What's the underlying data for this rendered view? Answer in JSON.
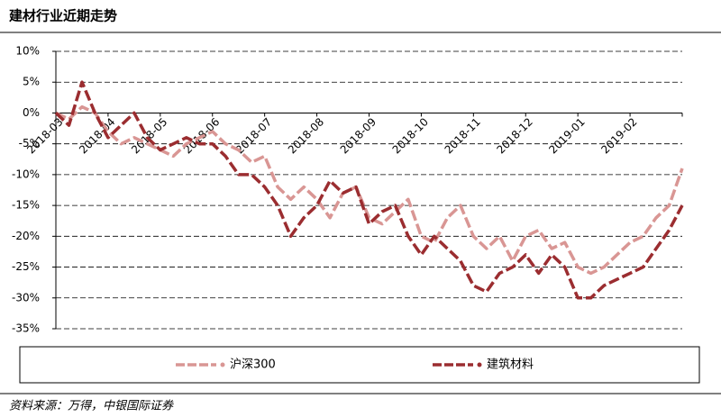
{
  "chart_data": {
    "type": "line",
    "title": "建材行业近期走势",
    "source": "资料来源：万得，中银国际证券",
    "categories": [
      "2018-03",
      null,
      null,
      null,
      "2018-04",
      null,
      null,
      null,
      "2018-05",
      null,
      null,
      null,
      "2018-06",
      null,
      null,
      null,
      "2018-07",
      null,
      null,
      null,
      "2018-08",
      null,
      null,
      null,
      "2018-09",
      null,
      null,
      null,
      "2018-10",
      null,
      null,
      null,
      "2018-11",
      null,
      null,
      null,
      "2018-12",
      null,
      null,
      null,
      "2019-01",
      null,
      null,
      null,
      "2019-02",
      null,
      null,
      null,
      null
    ],
    "series": [
      {
        "name": "沪深300",
        "color": "#d99694",
        "values": [
          0,
          -1,
          1,
          0,
          -3,
          -5,
          -4,
          -5,
          -6,
          -7,
          -5,
          -4,
          -3,
          -5,
          -6,
          -8,
          -7,
          -12,
          -14,
          -12,
          -14,
          -17,
          -13,
          -12,
          -17,
          -18,
          -16,
          -14,
          -20,
          -21,
          -17,
          -15,
          -20,
          -22,
          -20,
          -24,
          -20,
          -19,
          -22,
          -21,
          -25,
          -26,
          -25,
          -23,
          -21,
          -20,
          -17,
          -15,
          -9
        ]
      },
      {
        "name": "建筑材料",
        "color": "#9b2d30",
        "values": [
          0,
          -2,
          5,
          0,
          -4,
          -2,
          0,
          -4,
          -6,
          -5,
          -4,
          -5,
          -5,
          -7,
          -10,
          -10,
          -12,
          -15,
          -20,
          -17,
          -15,
          -11,
          -13,
          -12,
          -18,
          -16,
          -15,
          -20,
          -23,
          -20,
          -22,
          -24,
          -28,
          -29,
          -26,
          -25,
          -23,
          -26,
          -23,
          -25,
          -30,
          -30,
          -28,
          -27,
          -26,
          -25,
          -22,
          -19,
          -15
        ]
      }
    ],
    "ylim": [
      -35,
      10
    ],
    "yticks": [
      {
        "value": -35,
        "label": "-35%"
      },
      {
        "value": -30,
        "label": "-30%"
      },
      {
        "value": -25,
        "label": "-25%"
      },
      {
        "value": -20,
        "label": "-20%"
      },
      {
        "value": -15,
        "label": "-15%"
      },
      {
        "value": -10,
        "label": "-10%"
      },
      {
        "value": -5,
        "label": "-5%"
      },
      {
        "value": 0,
        "label": "0%"
      },
      {
        "value": 5,
        "label": "5%"
      },
      {
        "value": 10,
        "label": "10%"
      }
    ],
    "grid": true
  }
}
